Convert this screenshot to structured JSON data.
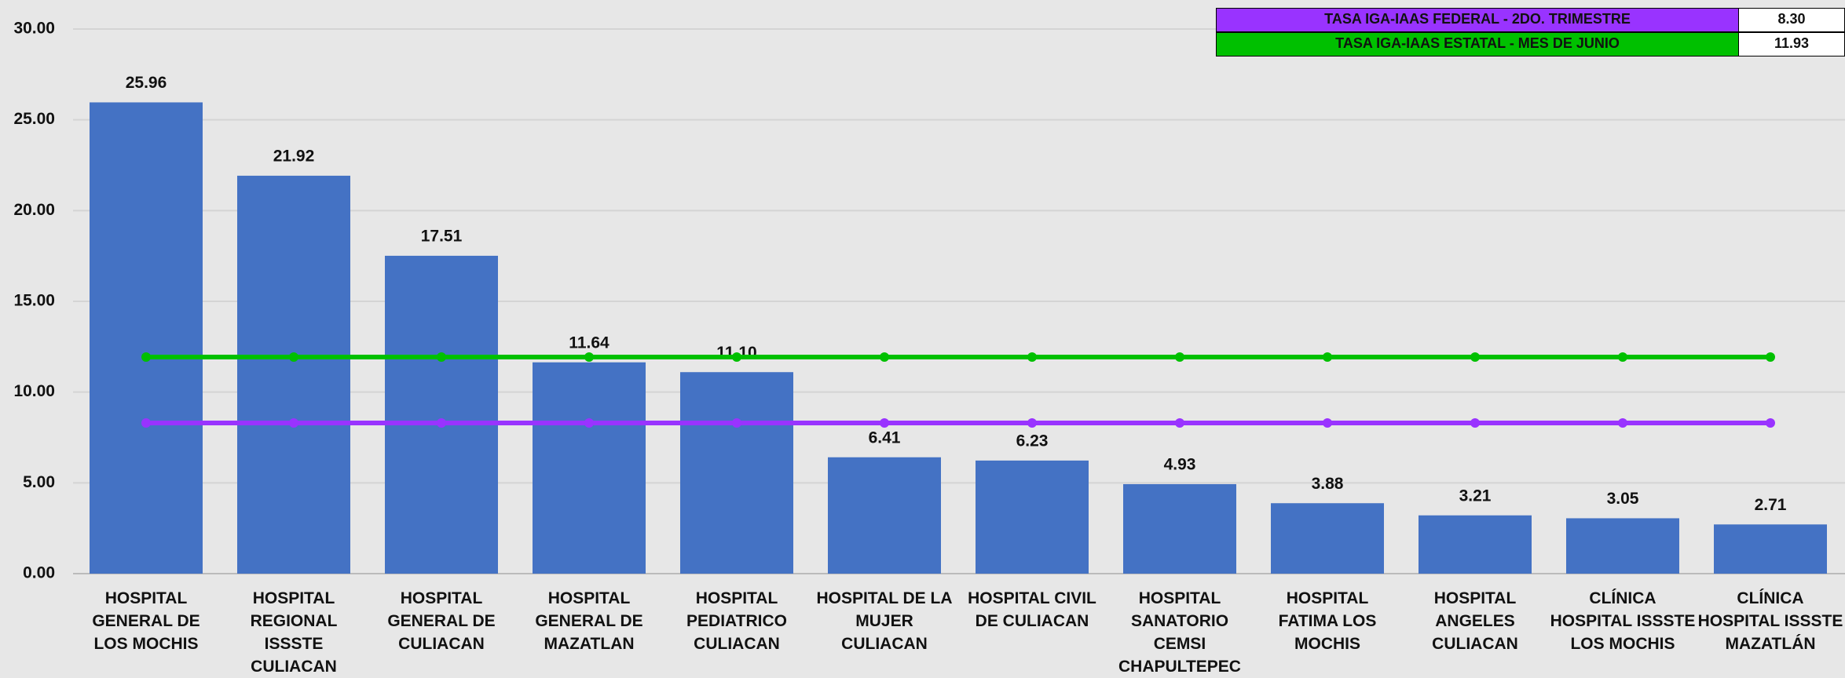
{
  "chart_data": {
    "type": "bar",
    "categories": [
      "HOSPITAL GENERAL DE LOS MOCHIS",
      "HOSPITAL REGIONAL ISSSTE CULIACAN",
      "HOSPITAL GENERAL DE CULIACAN",
      "HOSPITAL GENERAL DE MAZATLAN",
      "HOSPITAL PEDIATRICO CULIACAN",
      "HOSPITAL DE LA MUJER CULIACAN",
      "HOSPITAL CIVIL DE CULIACAN",
      "HOSPITAL SANATORIO CEMSI CHAPULTEPEC",
      "HOSPITAL FATIMA LOS MOCHIS",
      "HOSPITAL ANGELES CULIACAN",
      "CLÍNICA HOSPITAL ISSSTE LOS MOCHIS",
      "CLÍNICA HOSPITAL ISSSTE MAZATLÁN"
    ],
    "values": [
      25.96,
      21.92,
      17.51,
      11.64,
      11.1,
      6.41,
      6.23,
      4.93,
      3.88,
      3.21,
      3.05,
      2.71
    ],
    "value_labels": [
      "25.96",
      "21.92",
      "17.51",
      "11.64",
      "11.10",
      "6.41",
      "6.23",
      "4.93",
      "3.88",
      "3.21",
      "3.05",
      "2.71"
    ],
    "color": "#4472c4",
    "ylim": [
      0,
      30
    ],
    "yticks": [
      {
        "value": 0,
        "label": "0.00"
      },
      {
        "value": 5,
        "label": "5.00"
      },
      {
        "value": 10,
        "label": "10.00"
      },
      {
        "value": 15,
        "label": "15.00"
      },
      {
        "value": 20,
        "label": "20.00"
      },
      {
        "value": 25,
        "label": "25.00"
      },
      {
        "value": 30,
        "label": "30.00"
      }
    ],
    "grid": true,
    "series": [
      {
        "name": "TASA IGA-IAAS FEDERAL - 2DO. TRIMESTRE",
        "color": "#9933ff",
        "values": [
          8.3,
          8.3,
          8.3,
          8.3,
          8.3,
          8.3,
          8.3,
          8.3,
          8.3,
          8.3,
          8.3,
          8.3
        ],
        "legend_value": "8.30"
      },
      {
        "name": "TASA IGA-IAAS ESTATAL - MES DE JUNIO",
        "color": "#00c000",
        "values": [
          11.93,
          11.93,
          11.93,
          11.93,
          11.93,
          11.93,
          11.93,
          11.93,
          11.93,
          11.93,
          11.93,
          11.93
        ],
        "legend_value": "11.93"
      }
    ]
  }
}
